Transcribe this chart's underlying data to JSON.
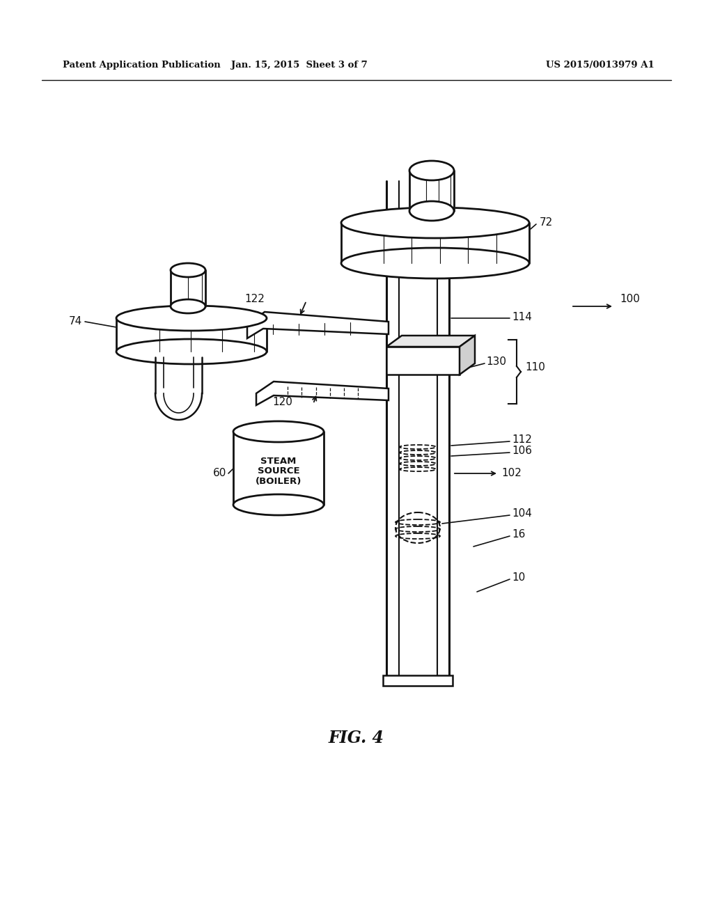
{
  "header_left": "Patent Application Publication",
  "header_center": "Jan. 15, 2015  Sheet 3 of 7",
  "header_right": "US 2015/0013979 A1",
  "figure_label": "FIG. 4",
  "bg": "#ffffff",
  "lc": "#111111"
}
